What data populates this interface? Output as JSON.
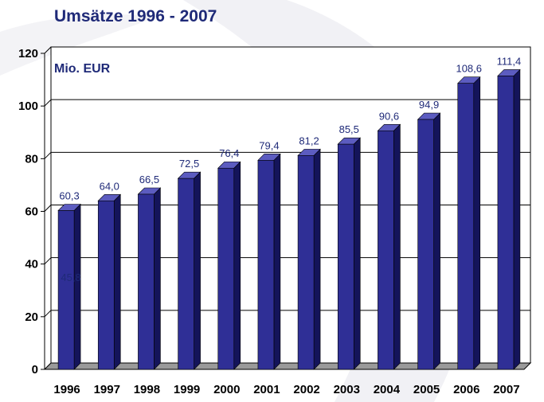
{
  "title": "Umsätze 1996 - 2007",
  "chart_data": {
    "type": "bar",
    "title": "Umsätze 1996 - 2007",
    "unit_label": "Mio. EUR",
    "categories": [
      "1996",
      "1997",
      "1998",
      "1999",
      "2000",
      "2001",
      "2002",
      "2003",
      "2004",
      "2005",
      "2006",
      "2007"
    ],
    "values": [
      60.3,
      64.0,
      66.5,
      72.5,
      76.4,
      79.4,
      81.2,
      85.5,
      90.6,
      94.9,
      108.6,
      111.4
    ],
    "value_labels": [
      "60,3",
      "64,0",
      "66,5",
      "72,5",
      "76,4",
      "79,4",
      "81,2",
      "85,5",
      "90,6",
      "94,9",
      "108,6",
      "111,4"
    ],
    "extra_labels": [
      {
        "category": "1996",
        "text": "45,8"
      }
    ],
    "ylim": [
      0,
      120
    ],
    "yticks": [
      0,
      20,
      40,
      60,
      80,
      100,
      120
    ],
    "xlabel": "",
    "ylabel": "",
    "grid": true,
    "colors": {
      "bar_front": "#2f2f96",
      "bar_side": "#14145a",
      "bar_top": "#5c5cc0",
      "text": "#1f2a78"
    }
  }
}
